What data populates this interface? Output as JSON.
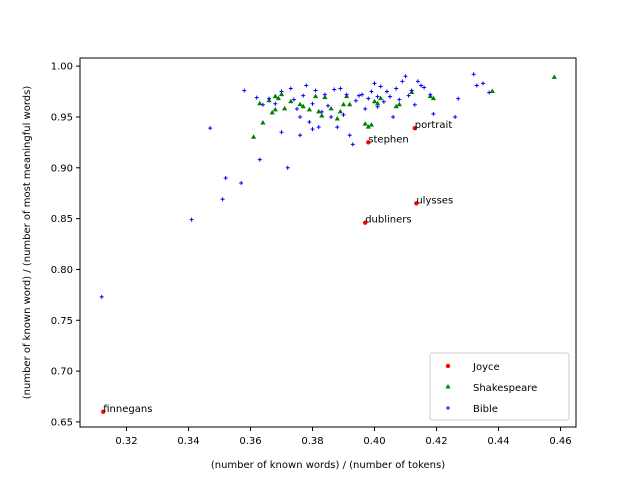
{
  "chart_data": {
    "type": "scatter",
    "xlabel": "(number of known words) / (number of tokens)",
    "ylabel": "(number of known word) / (number of most meaningful words)",
    "xlim": [
      0.305,
      0.465
    ],
    "ylim": [
      0.645,
      1.008
    ],
    "xticks": [
      "0.32",
      "0.34",
      "0.36",
      "0.38",
      "0.40",
      "0.42",
      "0.44",
      "0.46"
    ],
    "xtick_values": [
      0.32,
      0.34,
      0.36,
      0.38,
      0.4,
      0.42,
      0.44,
      0.46
    ],
    "yticks": [
      "0.65",
      "0.70",
      "0.75",
      "0.80",
      "0.85",
      "0.90",
      "0.95",
      "1.00"
    ],
    "ytick_values": [
      0.65,
      0.7,
      0.75,
      0.8,
      0.85,
      0.9,
      0.95,
      1.0
    ],
    "legend_position": "lower-right",
    "series": [
      {
        "name": "Joyce",
        "color": "#ff0000",
        "marker": "circle",
        "points": [
          {
            "x": 0.3125,
            "y": 0.66,
            "label": "finnegans"
          },
          {
            "x": 0.397,
            "y": 0.846,
            "label": "dubliners"
          },
          {
            "x": 0.398,
            "y": 0.925,
            "label": "stephen"
          },
          {
            "x": 0.413,
            "y": 0.939,
            "label": "portrait"
          },
          {
            "x": 0.4135,
            "y": 0.865,
            "label": "ulysses"
          }
        ]
      },
      {
        "name": "Shakespeare",
        "color": "#008000",
        "marker": "triangle",
        "points": [
          {
            "x": 0.361,
            "y": 0.93
          },
          {
            "x": 0.363,
            "y": 0.963
          },
          {
            "x": 0.364,
            "y": 0.944
          },
          {
            "x": 0.366,
            "y": 0.966
          },
          {
            "x": 0.367,
            "y": 0.954
          },
          {
            "x": 0.368,
            "y": 0.957
          },
          {
            "x": 0.368,
            "y": 0.97
          },
          {
            "x": 0.369,
            "y": 0.968
          },
          {
            "x": 0.37,
            "y": 0.972
          },
          {
            "x": 0.371,
            "y": 0.958
          },
          {
            "x": 0.373,
            "y": 0.965
          },
          {
            "x": 0.376,
            "y": 0.962
          },
          {
            "x": 0.377,
            "y": 0.96
          },
          {
            "x": 0.379,
            "y": 0.957
          },
          {
            "x": 0.381,
            "y": 0.97
          },
          {
            "x": 0.382,
            "y": 0.955
          },
          {
            "x": 0.383,
            "y": 0.951
          },
          {
            "x": 0.384,
            "y": 0.969
          },
          {
            "x": 0.386,
            "y": 0.958
          },
          {
            "x": 0.388,
            "y": 0.948
          },
          {
            "x": 0.389,
            "y": 0.955
          },
          {
            "x": 0.39,
            "y": 0.962
          },
          {
            "x": 0.391,
            "y": 0.97
          },
          {
            "x": 0.392,
            "y": 0.962
          },
          {
            "x": 0.397,
            "y": 0.943
          },
          {
            "x": 0.398,
            "y": 0.94
          },
          {
            "x": 0.399,
            "y": 0.942
          },
          {
            "x": 0.4,
            "y": 0.965
          },
          {
            "x": 0.401,
            "y": 0.963
          },
          {
            "x": 0.402,
            "y": 0.968
          },
          {
            "x": 0.407,
            "y": 0.96
          },
          {
            "x": 0.408,
            "y": 0.962
          },
          {
            "x": 0.412,
            "y": 0.974
          },
          {
            "x": 0.418,
            "y": 0.97
          },
          {
            "x": 0.419,
            "y": 0.968
          },
          {
            "x": 0.438,
            "y": 0.975
          },
          {
            "x": 0.458,
            "y": 0.989
          }
        ]
      },
      {
        "name": "Bible",
        "color": "#0000ff",
        "marker": "plus",
        "points": [
          {
            "x": 0.312,
            "y": 0.773
          },
          {
            "x": 0.341,
            "y": 0.849
          },
          {
            "x": 0.347,
            "y": 0.939
          },
          {
            "x": 0.351,
            "y": 0.869
          },
          {
            "x": 0.352,
            "y": 0.89
          },
          {
            "x": 0.357,
            "y": 0.885
          },
          {
            "x": 0.358,
            "y": 0.976
          },
          {
            "x": 0.362,
            "y": 0.969
          },
          {
            "x": 0.363,
            "y": 0.908
          },
          {
            "x": 0.364,
            "y": 0.962
          },
          {
            "x": 0.366,
            "y": 0.968
          },
          {
            "x": 0.368,
            "y": 0.963
          },
          {
            "x": 0.37,
            "y": 0.975
          },
          {
            "x": 0.37,
            "y": 0.935
          },
          {
            "x": 0.372,
            "y": 0.9
          },
          {
            "x": 0.373,
            "y": 0.978
          },
          {
            "x": 0.374,
            "y": 0.967
          },
          {
            "x": 0.375,
            "y": 0.958
          },
          {
            "x": 0.376,
            "y": 0.95
          },
          {
            "x": 0.376,
            "y": 0.932
          },
          {
            "x": 0.377,
            "y": 0.971
          },
          {
            "x": 0.378,
            "y": 0.981
          },
          {
            "x": 0.379,
            "y": 0.945
          },
          {
            "x": 0.38,
            "y": 0.963
          },
          {
            "x": 0.38,
            "y": 0.938
          },
          {
            "x": 0.381,
            "y": 0.976
          },
          {
            "x": 0.382,
            "y": 0.94
          },
          {
            "x": 0.383,
            "y": 0.955
          },
          {
            "x": 0.384,
            "y": 0.972
          },
          {
            "x": 0.385,
            "y": 0.961
          },
          {
            "x": 0.386,
            "y": 0.95
          },
          {
            "x": 0.387,
            "y": 0.977
          },
          {
            "x": 0.388,
            "y": 0.94
          },
          {
            "x": 0.389,
            "y": 0.978
          },
          {
            "x": 0.39,
            "y": 0.952
          },
          {
            "x": 0.391,
            "y": 0.972
          },
          {
            "x": 0.392,
            "y": 0.932
          },
          {
            "x": 0.393,
            "y": 0.923
          },
          {
            "x": 0.394,
            "y": 0.966
          },
          {
            "x": 0.395,
            "y": 0.971
          },
          {
            "x": 0.396,
            "y": 0.972
          },
          {
            "x": 0.397,
            "y": 0.958
          },
          {
            "x": 0.398,
            "y": 0.968
          },
          {
            "x": 0.399,
            "y": 0.975
          },
          {
            "x": 0.4,
            "y": 0.983
          },
          {
            "x": 0.401,
            "y": 0.97
          },
          {
            "x": 0.401,
            "y": 0.96
          },
          {
            "x": 0.402,
            "y": 0.98
          },
          {
            "x": 0.403,
            "y": 0.965
          },
          {
            "x": 0.404,
            "y": 0.975
          },
          {
            "x": 0.405,
            "y": 0.97
          },
          {
            "x": 0.406,
            "y": 0.95
          },
          {
            "x": 0.407,
            "y": 0.978
          },
          {
            "x": 0.408,
            "y": 0.967
          },
          {
            "x": 0.409,
            "y": 0.985
          },
          {
            "x": 0.41,
            "y": 0.99
          },
          {
            "x": 0.411,
            "y": 0.971
          },
          {
            "x": 0.412,
            "y": 0.976
          },
          {
            "x": 0.413,
            "y": 0.962
          },
          {
            "x": 0.414,
            "y": 0.985
          },
          {
            "x": 0.415,
            "y": 0.981
          },
          {
            "x": 0.416,
            "y": 0.979
          },
          {
            "x": 0.418,
            "y": 0.972
          },
          {
            "x": 0.419,
            "y": 0.953
          },
          {
            "x": 0.426,
            "y": 0.95
          },
          {
            "x": 0.427,
            "y": 0.968
          },
          {
            "x": 0.432,
            "y": 0.992
          },
          {
            "x": 0.433,
            "y": 0.981
          },
          {
            "x": 0.435,
            "y": 0.983
          },
          {
            "x": 0.437,
            "y": 0.974
          }
        ]
      }
    ]
  }
}
